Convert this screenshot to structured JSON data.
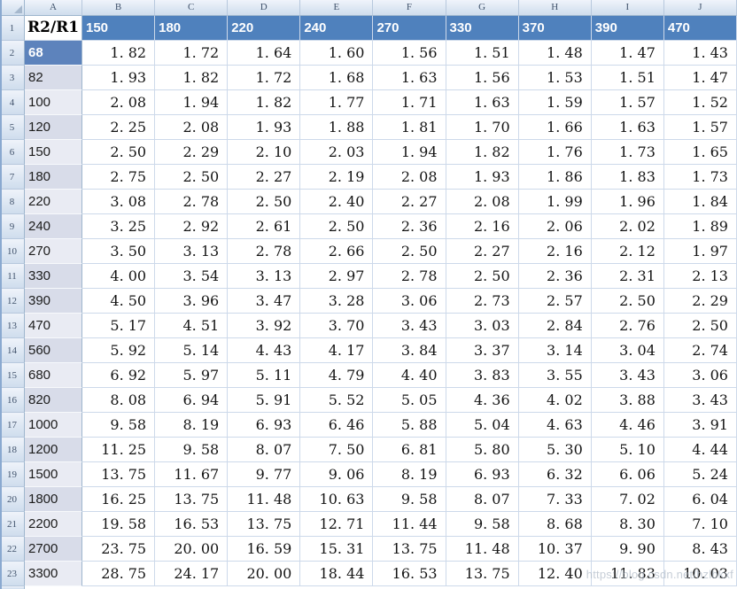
{
  "sheet": {
    "column_letters": [
      "A",
      "B",
      "C",
      "D",
      "E",
      "F",
      "G",
      "H",
      "I",
      "J"
    ],
    "header_row": {
      "row_number": "1",
      "a_cell": "R2/R1",
      "values": [
        "150",
        "180",
        "220",
        "240",
        "270",
        "330",
        "370",
        "390",
        "470"
      ]
    },
    "data_rows": [
      {
        "row_number": "2",
        "label": "68",
        "shade": "selected",
        "values": [
          "1.82",
          "1.72",
          "1.64",
          "1.60",
          "1.56",
          "1.51",
          "1.48",
          "1.47",
          "1.43"
        ]
      },
      {
        "row_number": "3",
        "label": "82",
        "shade": "dark",
        "values": [
          "1.93",
          "1.82",
          "1.72",
          "1.68",
          "1.63",
          "1.56",
          "1.53",
          "1.51",
          "1.47"
        ]
      },
      {
        "row_number": "4",
        "label": "100",
        "shade": "light",
        "values": [
          "2.08",
          "1.94",
          "1.82",
          "1.77",
          "1.71",
          "1.63",
          "1.59",
          "1.57",
          "1.52"
        ]
      },
      {
        "row_number": "5",
        "label": "120",
        "shade": "dark",
        "values": [
          "2.25",
          "2.08",
          "1.93",
          "1.88",
          "1.81",
          "1.70",
          "1.66",
          "1.63",
          "1.57"
        ]
      },
      {
        "row_number": "6",
        "label": "150",
        "shade": "light",
        "values": [
          "2.50",
          "2.29",
          "2.10",
          "2.03",
          "1.94",
          "1.82",
          "1.76",
          "1.73",
          "1.65"
        ]
      },
      {
        "row_number": "7",
        "label": "180",
        "shade": "dark",
        "values": [
          "2.75",
          "2.50",
          "2.27",
          "2.19",
          "2.08",
          "1.93",
          "1.86",
          "1.83",
          "1.73"
        ]
      },
      {
        "row_number": "8",
        "label": "220",
        "shade": "light",
        "values": [
          "3.08",
          "2.78",
          "2.50",
          "2.40",
          "2.27",
          "2.08",
          "1.99",
          "1.96",
          "1.84"
        ]
      },
      {
        "row_number": "9",
        "label": "240",
        "shade": "dark",
        "values": [
          "3.25",
          "2.92",
          "2.61",
          "2.50",
          "2.36",
          "2.16",
          "2.06",
          "2.02",
          "1.89"
        ]
      },
      {
        "row_number": "10",
        "label": "270",
        "shade": "light",
        "values": [
          "3.50",
          "3.13",
          "2.78",
          "2.66",
          "2.50",
          "2.27",
          "2.16",
          "2.12",
          "1.97"
        ]
      },
      {
        "row_number": "11",
        "label": "330",
        "shade": "dark",
        "values": [
          "4.00",
          "3.54",
          "3.13",
          "2.97",
          "2.78",
          "2.50",
          "2.36",
          "2.31",
          "2.13"
        ]
      },
      {
        "row_number": "12",
        "label": "390",
        "shade": "dark",
        "values": [
          "4.50",
          "3.96",
          "3.47",
          "3.28",
          "3.06",
          "2.73",
          "2.57",
          "2.50",
          "2.29"
        ]
      },
      {
        "row_number": "13",
        "label": "470",
        "shade": "light",
        "values": [
          "5.17",
          "4.51",
          "3.92",
          "3.70",
          "3.43",
          "3.03",
          "2.84",
          "2.76",
          "2.50"
        ]
      },
      {
        "row_number": "14",
        "label": "560",
        "shade": "dark",
        "values": [
          "5.92",
          "5.14",
          "4.43",
          "4.17",
          "3.84",
          "3.37",
          "3.14",
          "3.04",
          "2.74"
        ]
      },
      {
        "row_number": "15",
        "label": "680",
        "shade": "light",
        "values": [
          "6.92",
          "5.97",
          "5.11",
          "4.79",
          "4.40",
          "3.83",
          "3.55",
          "3.43",
          "3.06"
        ]
      },
      {
        "row_number": "16",
        "label": "820",
        "shade": "dark",
        "values": [
          "8.08",
          "6.94",
          "5.91",
          "5.52",
          "5.05",
          "4.36",
          "4.02",
          "3.88",
          "3.43"
        ]
      },
      {
        "row_number": "17",
        "label": "1000",
        "shade": "light",
        "values": [
          "9.58",
          "8.19",
          "6.93",
          "6.46",
          "5.88",
          "5.04",
          "4.63",
          "4.46",
          "3.91"
        ]
      },
      {
        "row_number": "18",
        "label": "1200",
        "shade": "dark",
        "values": [
          "11.25",
          "9.58",
          "8.07",
          "7.50",
          "6.81",
          "5.80",
          "5.30",
          "5.10",
          "4.44"
        ]
      },
      {
        "row_number": "19",
        "label": "1500",
        "shade": "light",
        "values": [
          "13.75",
          "11.67",
          "9.77",
          "9.06",
          "8.19",
          "6.93",
          "6.32",
          "6.06",
          "5.24"
        ]
      },
      {
        "row_number": "20",
        "label": "1800",
        "shade": "dark",
        "values": [
          "16.25",
          "13.75",
          "11.48",
          "10.63",
          "9.58",
          "8.07",
          "7.33",
          "7.02",
          "6.04"
        ]
      },
      {
        "row_number": "21",
        "label": "2200",
        "shade": "light",
        "values": [
          "19.58",
          "16.53",
          "13.75",
          "12.71",
          "11.44",
          "9.58",
          "8.68",
          "8.30",
          "7.10"
        ]
      },
      {
        "row_number": "22",
        "label": "2700",
        "shade": "dark",
        "values": [
          "23.75",
          "20.00",
          "16.59",
          "15.31",
          "13.75",
          "11.48",
          "10.37",
          "9.90",
          "8.43"
        ]
      },
      {
        "row_number": "23",
        "label": "3300",
        "shade": "light",
        "values": [
          "28.75",
          "24.17",
          "20.00",
          "18.44",
          "16.53",
          "13.75",
          "12.40",
          "11.83",
          "10.03"
        ]
      }
    ],
    "watermark": "https://blog.csdn.net/hzlbkxf",
    "colors": {
      "header_blue": "#4f81bd",
      "selected_cell_blue": "#5d83bc",
      "band_dark": "#d8dce9",
      "band_light": "#e9ebf3",
      "gridline": "#cdd9ea",
      "header_strip_border": "#9eb6ce"
    }
  }
}
